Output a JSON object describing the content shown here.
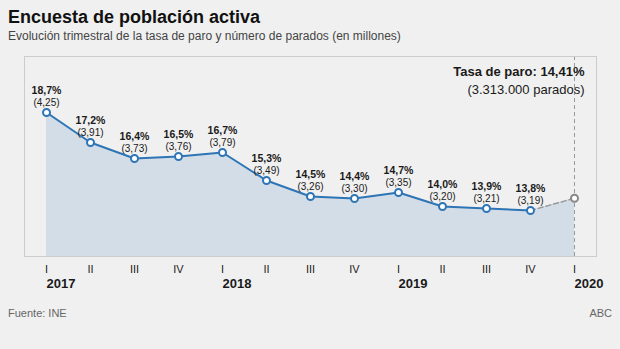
{
  "chart_data": {
    "type": "line",
    "title": "Encuesta de población activa",
    "subtitle": "Evolución trimestral de la tasa de paro y número de parados (en millones)",
    "source": "Fuente: INE",
    "credit": "ABC",
    "categories": [
      "I",
      "II",
      "III",
      "IV",
      "I",
      "II",
      "III",
      "IV",
      "I",
      "II",
      "III",
      "IV",
      "I"
    ],
    "values": [
      18.7,
      17.2,
      16.4,
      16.5,
      16.7,
      15.3,
      14.5,
      14.4,
      14.7,
      14.0,
      13.9,
      13.8,
      14.41
    ],
    "value_labels": [
      "18,7%",
      "17,2%",
      "16,4%",
      "16,5%",
      "16,7%",
      "15,3%",
      "14,5%",
      "14,4%",
      "14,7%",
      "14,0%",
      "13,9%",
      "13,8%",
      null
    ],
    "millions": [
      4.25,
      3.91,
      3.73,
      3.76,
      3.79,
      3.49,
      3.26,
      3.3,
      3.35,
      3.2,
      3.21,
      3.19,
      null
    ],
    "millions_labels": [
      "(4,25)",
      "(3,91)",
      "(3,73)",
      "(3,76)",
      "(3,79)",
      "(3,49)",
      "(3,26)",
      "(3,30)",
      "(3,35)",
      "(3,20)",
      "(3,21)",
      "(3,19)",
      null
    ],
    "annotations": [
      {
        "text": "2017",
        "x": 0
      },
      {
        "text": "2018",
        "x": 4
      },
      {
        "text": "2019",
        "x": 8
      },
      {
        "text": "2020",
        "x": 12
      },
      {
        "text": "Tasa de paro: 14,41%"
      },
      {
        "text": "(3.313.000 parados)"
      }
    ],
    "color": "#2e75b6",
    "ylim": [
      11.5,
      21.5
    ],
    "grid": false,
    "data_labels": true,
    "tick_labels": "x"
  }
}
